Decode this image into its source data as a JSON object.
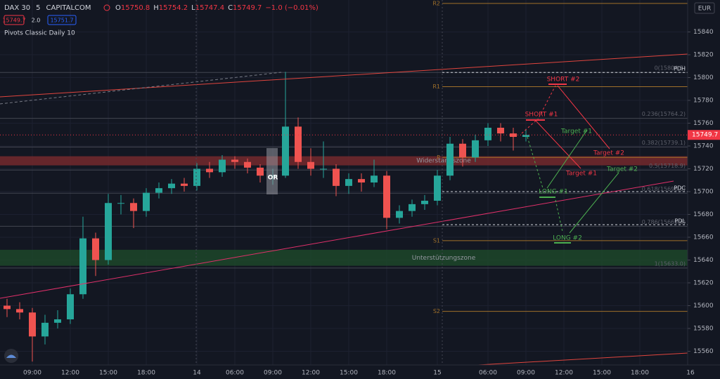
{
  "header": {
    "symbol": "DAX 30",
    "interval": "5",
    "exchange": "CAPITALCOM",
    "ohlc": [
      {
        "key": "O",
        "value": "15750.8"
      },
      {
        "key": "H",
        "value": "15754.2"
      },
      {
        "key": "L",
        "value": "15747.4"
      },
      {
        "key": "C",
        "value": "15749.7"
      }
    ],
    "change": "−1.0 (−0.01%)",
    "bid": "15749.7",
    "spread": "2.0",
    "ask": "15751.7",
    "indicator": "Pivots Classic Daily 10",
    "currency": "EUR"
  },
  "chart_data": {
    "type": "candlestick",
    "categories": [
      null,
      null,
      "09:00",
      null,
      null,
      "12:00",
      null,
      null,
      "15:00",
      null,
      null,
      "18:00",
      null,
      null,
      null,
      "14",
      null,
      null,
      "06:00",
      null,
      null,
      "09:00",
      null,
      null,
      "12:00",
      null,
      null,
      "15:00",
      null,
      null,
      "18:00",
      null,
      null,
      null,
      "15",
      null,
      null,
      null,
      "06:00",
      null,
      null,
      "09:00",
      null,
      null,
      "12:00",
      null,
      null,
      "15:00",
      null,
      null,
      "18:00",
      null,
      null,
      null,
      "16"
    ],
    "open": [
      15600,
      15597,
      15594,
      15573,
      15585,
      15588,
      15610,
      15659,
      15640,
      15690,
      15690,
      15683,
      15699,
      15703,
      15707,
      15705,
      15720,
      15717,
      15728,
      15726,
      15721,
      15714,
      15714,
      15757,
      15726,
      15720,
      15720,
      15705,
      15711,
      15708,
      15714,
      15677,
      15683,
      15689,
      15692,
      15714,
      15742,
      15730,
      15745,
      15756,
      15751,
      15748,
      null,
      null,
      null,
      null,
      null,
      null,
      null,
      null,
      null,
      null,
      null,
      null,
      null
    ],
    "high": [
      15606,
      15603,
      15598,
      15592,
      15596,
      15615,
      15678,
      15664,
      15698,
      15697,
      15694,
      15703,
      15708,
      15711,
      15712,
      15725,
      15726,
      15732,
      15731,
      15729,
      15724,
      15720,
      15805,
      15765,
      15738,
      15744,
      15724,
      15716,
      15716,
      15728,
      15718,
      15688,
      15693,
      15697,
      15719,
      15748,
      15746,
      15750,
      15760,
      15760,
      15756,
      15755,
      null,
      null,
      null,
      null,
      null,
      null,
      null,
      null,
      null,
      null,
      null,
      null,
      null
    ],
    "low": [
      15590,
      15588,
      15551,
      15566,
      15580,
      15584,
      15606,
      15626,
      15636,
      15680,
      15668,
      15678,
      15694,
      15698,
      15700,
      15701,
      15712,
      15713,
      15720,
      15716,
      15708,
      15706,
      15712,
      15720,
      15714,
      15712,
      15696,
      15698,
      15700,
      15704,
      15667,
      15672,
      15678,
      15684,
      15688,
      15710,
      15722,
      15726,
      15740,
      15744,
      15736,
      15744,
      null,
      null,
      null,
      null,
      null,
      null,
      null,
      null,
      null,
      null,
      null,
      null,
      null
    ],
    "close": [
      15597,
      15594,
      15573,
      15585,
      15588,
      15610,
      15659,
      15640,
      15690,
      15690,
      15683,
      15699,
      15703,
      15707,
      15705,
      15720,
      15717,
      15728,
      15726,
      15721,
      15714,
      15714,
      15757,
      15726,
      15720,
      15720,
      15705,
      15711,
      15708,
      15714,
      15677,
      15683,
      15689,
      15692,
      15714,
      15742,
      15730,
      15745,
      15756,
      15751,
      15748,
      15749.7,
      null,
      null,
      null,
      null,
      null,
      null,
      null,
      null,
      null,
      null,
      null,
      null,
      null
    ],
    "up_color": "#26a69a",
    "down_color": "#ef5350",
    "ylim": [
      15548,
      15868
    ],
    "yticks": [
      15560,
      15580,
      15600,
      15620,
      15640,
      15660,
      15680,
      15700,
      15720,
      15740,
      15760,
      15780,
      15800,
      15820,
      15840
    ],
    "grid": true,
    "pivots": [
      {
        "label": "R2",
        "value": 15865
      },
      {
        "label": "R1",
        "value": 15792
      },
      {
        "label": "P",
        "value": 15730
      },
      {
        "label": "S1",
        "value": 15657
      },
      {
        "label": "S2",
        "value": 15595
      }
    ],
    "fib": [
      {
        "label": "0(15804.5)",
        "value": 15804.5
      },
      {
        "label": "0.236(15764.2)",
        "value": 15764.2
      },
      {
        "label": "0.382(15739.1)",
        "value": 15739.1
      },
      {
        "label": "0.5(15718.9)",
        "value": 15718.9
      },
      {
        "label": "0.618(15698.6)",
        "value": 15698.6
      },
      {
        "label": "0.786(15669.6)",
        "value": 15669.6
      },
      {
        "label": "1(15633.0)",
        "value": 15633.0
      }
    ],
    "prev_day": [
      {
        "label": "PDH",
        "value": 15804.5
      },
      {
        "label": "PDC",
        "value": 15700
      },
      {
        "label": "PDL",
        "value": 15671
      }
    ],
    "zones": [
      {
        "label": "Widerstandszone",
        "from": 15723,
        "to": 15731,
        "color": "#7a2a2e"
      },
      {
        "label": "Unterstützungszone",
        "from": 15635,
        "to": 15649,
        "color": "#1e4a2a"
      }
    ],
    "annotations": [
      "SHORT #2",
      "SHORT #1",
      "Target #1",
      "Target #2",
      "LONG #1",
      "LONG #2",
      "Target #1",
      "Target #2",
      "OR"
    ]
  }
}
